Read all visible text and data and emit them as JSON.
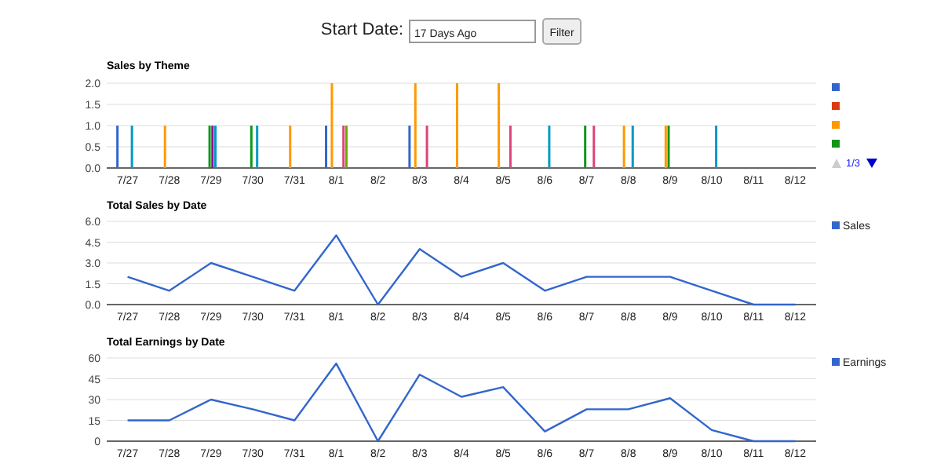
{
  "chart_data": [
    {
      "type": "other",
      "annotations": [
        "Start Date:",
        "17 Days Ago",
        "Filter"
      ]
    },
    {
      "type": "bar",
      "title": "Sales by Theme",
      "categories": [
        "7/27",
        "7/28",
        "7/29",
        "7/30",
        "7/31",
        "8/1",
        "8/2",
        "8/3",
        "8/4",
        "8/5",
        "8/6",
        "8/7",
        "8/8",
        "8/9",
        "8/10",
        "8/11",
        "8/12"
      ],
      "series": [
        {
          "color": "#3366cc",
          "values": [
            1,
            null,
            null,
            null,
            null,
            1,
            null,
            1,
            null,
            null,
            null,
            null,
            null,
            null,
            null,
            null,
            null
          ]
        },
        {
          "color": "#dc3912",
          "values": [
            null,
            null,
            null,
            null,
            null,
            null,
            null,
            null,
            null,
            null,
            null,
            null,
            null,
            null,
            null,
            null,
            null
          ]
        },
        {
          "color": "#ff9900",
          "values": [
            null,
            1,
            null,
            null,
            1,
            2,
            null,
            2,
            2,
            2,
            null,
            null,
            1,
            1,
            null,
            null,
            null
          ]
        },
        {
          "color": "#109618",
          "values": [
            null,
            null,
            1,
            1,
            null,
            null,
            null,
            null,
            null,
            null,
            null,
            1,
            null,
            1,
            null,
            null,
            null
          ]
        },
        {
          "color": "#990099",
          "values": [
            null,
            null,
            1,
            null,
            null,
            null,
            null,
            null,
            null,
            null,
            null,
            null,
            null,
            null,
            null,
            null,
            null
          ]
        },
        {
          "color": "#0099c6",
          "values": [
            1,
            null,
            1,
            1,
            null,
            null,
            null,
            null,
            null,
            null,
            1,
            null,
            1,
            null,
            1,
            null,
            null
          ]
        },
        {
          "color": "#dd4477",
          "values": [
            null,
            null,
            null,
            null,
            null,
            1,
            null,
            1,
            null,
            1,
            null,
            1,
            null,
            null,
            null,
            null,
            null
          ]
        },
        {
          "color": "#66aa00",
          "values": [
            null,
            null,
            null,
            null,
            null,
            1,
            null,
            null,
            null,
            null,
            null,
            null,
            null,
            null,
            null,
            null,
            null
          ]
        }
      ],
      "ylim": [
        0,
        2
      ],
      "yticks": [
        {
          "value": 0,
          "label": "0.0"
        },
        {
          "value": 0.5,
          "label": "0.5"
        },
        {
          "value": 1,
          "label": "1.0"
        },
        {
          "value": 1.5,
          "label": "1.5"
        },
        {
          "value": 2,
          "label": "2.0"
        }
      ],
      "grid": "y",
      "legend": "right",
      "annotations": [
        "1/3"
      ]
    },
    {
      "type": "line",
      "title": "Total Sales by Date",
      "categories": [
        "7/27",
        "7/28",
        "7/29",
        "7/30",
        "7/31",
        "8/1",
        "8/2",
        "8/3",
        "8/4",
        "8/5",
        "8/6",
        "8/7",
        "8/8",
        "8/9",
        "8/10",
        "8/11",
        "8/12"
      ],
      "series": [
        {
          "name": "Sales",
          "color": "#3366cc",
          "values": [
            2,
            1,
            3,
            2,
            1,
            5,
            0,
            4,
            2,
            3,
            1,
            2,
            2,
            2,
            1,
            0,
            0
          ]
        }
      ],
      "ylim": [
        0,
        6
      ],
      "yticks": [
        {
          "value": 0,
          "label": "0.0"
        },
        {
          "value": 1.5,
          "label": "1.5"
        },
        {
          "value": 3,
          "label": "3.0"
        },
        {
          "value": 4.5,
          "label": "4.5"
        },
        {
          "value": 6,
          "label": "6.0"
        }
      ],
      "grid": "y",
      "legend": "right",
      "marker": "none"
    },
    {
      "type": "line",
      "title": "Total Earnings by Date",
      "categories": [
        "7/27",
        "7/28",
        "7/29",
        "7/30",
        "7/31",
        "8/1",
        "8/2",
        "8/3",
        "8/4",
        "8/5",
        "8/6",
        "8/7",
        "8/8",
        "8/9",
        "8/10",
        "8/11",
        "8/12"
      ],
      "series": [
        {
          "name": "Earnings",
          "color": "#3366cc",
          "values": [
            15,
            15,
            30,
            23,
            15,
            56,
            0,
            48,
            32,
            39,
            7,
            23,
            23,
            31,
            8,
            0,
            0
          ]
        }
      ],
      "ylim": [
        0,
        60
      ],
      "yticks": [
        0,
        15,
        30,
        45,
        60
      ],
      "grid": "y",
      "legend": "right",
      "marker": "none"
    }
  ]
}
